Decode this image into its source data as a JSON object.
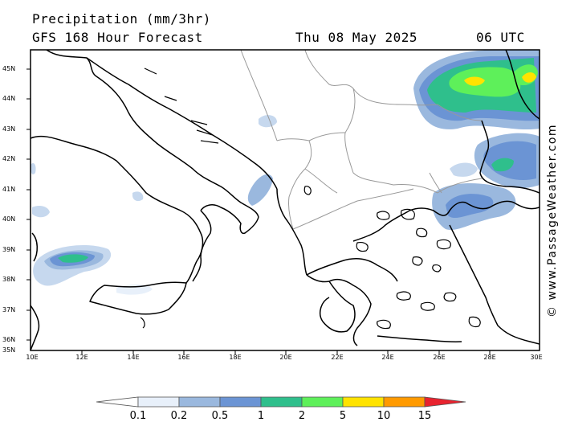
{
  "header": {
    "title_line1": "Precipitation (mm/3hr)",
    "title_line2": "GFS 168 Hour Forecast",
    "date": "Thu 08 May 2025",
    "time": "06 UTC"
  },
  "watermark": "© www.PassageWeather.com",
  "latitude_labels": [
    "45N",
    "44N",
    "43N",
    "42N",
    "41N",
    "40N",
    "39N",
    "38N",
    "37N",
    "36N",
    "35N"
  ],
  "longitude_labels": [
    "10E",
    "12E",
    "14E",
    "16E",
    "18E",
    "20E",
    "22E",
    "24E",
    "26E",
    "28E",
    "30E"
  ],
  "colorbar": {
    "labels": [
      "0.1",
      "0.2",
      "0.5",
      "1",
      "2",
      "5",
      "10",
      "15"
    ],
    "colors": [
      "#e8f0fa",
      "#c6d8ee",
      "#9ab8de",
      "#6b94d4",
      "#2fbf8c",
      "#5ef05a",
      "#ffe300",
      "#ff9a00",
      "#e8232f"
    ]
  },
  "map": {
    "region": "Italy, Balkans, Greece, Aegean, western Turkey",
    "land_color": "#ffffff",
    "coast_color": "#000000",
    "border_color": "#999999"
  }
}
